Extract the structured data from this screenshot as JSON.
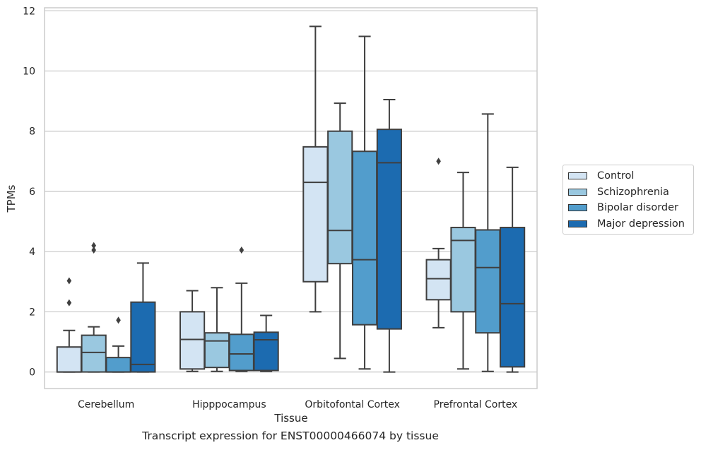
{
  "caption": "Transcript expression for ENST00000466074 by tissue",
  "chart_data": {
    "type": "box",
    "xlabel": "Tissue",
    "ylabel": "TPMs",
    "ylim": [
      -0.55,
      12.1
    ],
    "yticks": [
      0,
      2,
      4,
      6,
      8,
      10,
      12
    ],
    "grid": "horizontal",
    "legend_position": "right",
    "categories": [
      "Cerebellum",
      "Hipppocampus",
      "Orbitofontal Cortex",
      "Prefrontal Cortex"
    ],
    "series": [
      {
        "name": "Control",
        "color": "#d3e4f3",
        "boxes": [
          {
            "whislo": 0.0,
            "q1": 0.0,
            "med": 0.0,
            "q3": 0.83,
            "whishi": 1.38,
            "fliers": [
              2.3,
              3.03
            ]
          },
          {
            "whislo": 0.02,
            "q1": 0.1,
            "med": 1.08,
            "q3": 2.0,
            "whishi": 2.7,
            "fliers": []
          },
          {
            "whislo": 2.0,
            "q1": 3.0,
            "med": 6.3,
            "q3": 7.48,
            "whishi": 11.48,
            "fliers": []
          },
          {
            "whislo": 1.47,
            "q1": 2.4,
            "med": 3.1,
            "q3": 3.73,
            "whishi": 4.1,
            "fliers": [
              7.0
            ]
          }
        ]
      },
      {
        "name": "Schizophrenia",
        "color": "#9ac8e0",
        "boxes": [
          {
            "whislo": 0.0,
            "q1": 0.0,
            "med": 0.65,
            "q3": 1.22,
            "whishi": 1.5,
            "fliers": [
              4.05,
              4.2
            ]
          },
          {
            "whislo": 0.02,
            "q1": 0.15,
            "med": 1.03,
            "q3": 1.3,
            "whishi": 2.8,
            "fliers": []
          },
          {
            "whislo": 0.45,
            "q1": 3.6,
            "med": 4.7,
            "q3": 8.0,
            "whishi": 8.93,
            "fliers": []
          },
          {
            "whislo": 0.1,
            "q1": 2.0,
            "med": 4.37,
            "q3": 4.8,
            "whishi": 6.63,
            "fliers": []
          }
        ]
      },
      {
        "name": "Bipolar disorder",
        "color": "#529dcc",
        "boxes": [
          {
            "whislo": 0.0,
            "q1": 0.0,
            "med": 0.0,
            "q3": 0.48,
            "whishi": 0.86,
            "fliers": [
              1.72
            ]
          },
          {
            "whislo": 0.02,
            "q1": 0.05,
            "med": 0.6,
            "q3": 1.25,
            "whishi": 2.95,
            "fliers": [
              4.05
            ]
          },
          {
            "whislo": 0.1,
            "q1": 1.57,
            "med": 3.73,
            "q3": 7.33,
            "whishi": 11.15,
            "fliers": []
          },
          {
            "whislo": 0.02,
            "q1": 1.3,
            "med": 3.47,
            "q3": 4.72,
            "whishi": 8.57,
            "fliers": []
          }
        ]
      },
      {
        "name": "Major depression",
        "color": "#1c6bb0",
        "boxes": [
          {
            "whislo": 0.0,
            "q1": 0.0,
            "med": 0.25,
            "q3": 2.32,
            "whishi": 3.62,
            "fliers": []
          },
          {
            "whislo": 0.02,
            "q1": 0.05,
            "med": 1.07,
            "q3": 1.32,
            "whishi": 1.88,
            "fliers": []
          },
          {
            "whislo": 0.0,
            "q1": 1.43,
            "med": 6.95,
            "q3": 8.06,
            "whishi": 9.05,
            "fliers": []
          },
          {
            "whislo": 0.0,
            "q1": 0.17,
            "med": 2.27,
            "q3": 4.8,
            "whishi": 6.8,
            "fliers": []
          }
        ]
      }
    ]
  }
}
